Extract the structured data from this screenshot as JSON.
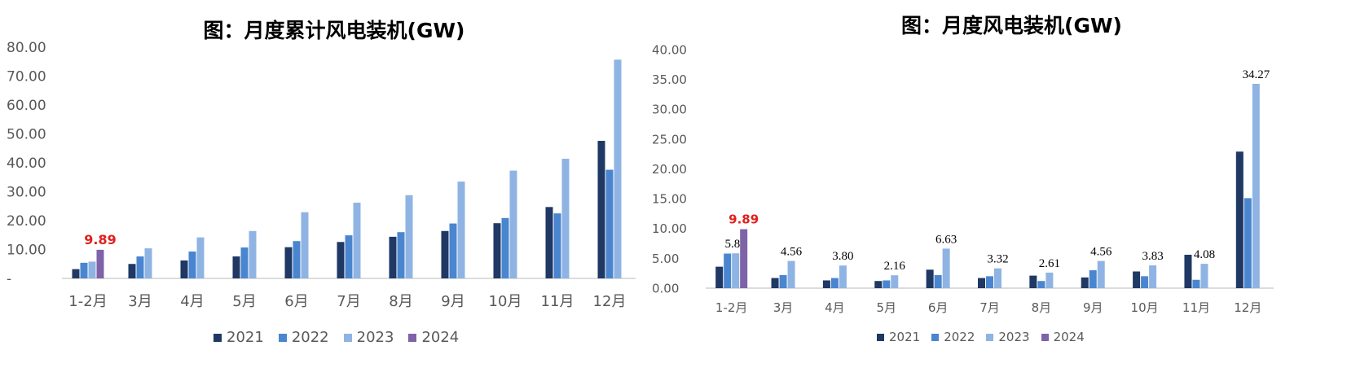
{
  "colors": {
    "2021": "#1f3864",
    "2022": "#4a86cf",
    "2023": "#8fb4e3",
    "2024": "#7f63a8",
    "highlight": "#e0201e",
    "axis": "#d0d0d0",
    "text": "#595959"
  },
  "chart_data": [
    {
      "type": "bar",
      "title": "图：月度累计风电装机(GW)",
      "xlabel": "",
      "ylabel": "",
      "ylim": [
        0,
        80
      ],
      "yticks": [
        "-",
        "10.00",
        "20.00",
        "30.00",
        "40.00",
        "50.00",
        "60.00",
        "70.00",
        "80.00"
      ],
      "grid": false,
      "legend_position": "bottom",
      "categories": [
        "1-2月",
        "3月",
        "4月",
        "5月",
        "6月",
        "7月",
        "8月",
        "9月",
        "10月",
        "11月",
        "12月"
      ],
      "series": [
        {
          "name": "2021",
          "values": [
            3.2,
            5.0,
            6.2,
            7.6,
            10.8,
            12.6,
            14.4,
            16.4,
            19.1,
            24.7,
            47.6
          ]
        },
        {
          "name": "2022",
          "values": [
            5.4,
            7.6,
            9.3,
            10.7,
            12.9,
            14.9,
            16.0,
            19.0,
            20.9,
            22.5,
            37.6
          ]
        },
        {
          "name": "2023",
          "values": [
            5.8,
            10.4,
            14.2,
            16.4,
            22.9,
            26.2,
            28.8,
            33.5,
            37.3,
            41.4,
            75.7
          ]
        },
        {
          "name": "2024",
          "values": [
            9.89,
            null,
            null,
            null,
            null,
            null,
            null,
            null,
            null,
            null,
            null
          ]
        }
      ],
      "data_labels": [
        {
          "series": "2024",
          "category": "1-2月",
          "text": "9.89"
        }
      ]
    },
    {
      "type": "bar",
      "title": "图：月度风电装机(GW)",
      "xlabel": "",
      "ylabel": "",
      "ylim": [
        0,
        40
      ],
      "yticks": [
        "0.00",
        "5.00",
        "10.00",
        "15.00",
        "20.00",
        "25.00",
        "30.00",
        "35.00",
        "40.00"
      ],
      "grid": false,
      "legend_position": "bottom",
      "categories": [
        "1-2月",
        "3月",
        "4月",
        "5月",
        "6月",
        "7月",
        "8月",
        "9月",
        "10月",
        "11月",
        "12月"
      ],
      "series": [
        {
          "name": "2021",
          "values": [
            3.6,
            1.7,
            1.3,
            1.2,
            3.1,
            1.7,
            2.1,
            1.8,
            2.8,
            5.6,
            22.9
          ]
        },
        {
          "name": "2022",
          "values": [
            5.8,
            2.2,
            1.7,
            1.3,
            2.2,
            2.0,
            1.2,
            3.0,
            2.0,
            1.4,
            15.1
          ]
        },
        {
          "name": "2023",
          "values": [
            5.84,
            4.56,
            3.8,
            2.16,
            6.63,
            3.32,
            2.61,
            4.56,
            3.83,
            4.08,
            34.27
          ]
        },
        {
          "name": "2024",
          "values": [
            9.89,
            null,
            null,
            null,
            null,
            null,
            null,
            null,
            null,
            null,
            null
          ]
        }
      ],
      "data_labels": [
        {
          "series": "2024",
          "category": "1-2月",
          "text": "9.89"
        },
        {
          "series": "2023",
          "category": "1-2月",
          "text": "5.84"
        },
        {
          "series": "2023",
          "category": "3月",
          "text": "4.56"
        },
        {
          "series": "2023",
          "category": "4月",
          "text": "3.80"
        },
        {
          "series": "2023",
          "category": "5月",
          "text": "2.16"
        },
        {
          "series": "2023",
          "category": "6月",
          "text": "6.63"
        },
        {
          "series": "2023",
          "category": "7月",
          "text": "3.32"
        },
        {
          "series": "2023",
          "category": "8月",
          "text": "2.61"
        },
        {
          "series": "2023",
          "category": "9月",
          "text": "4.56"
        },
        {
          "series": "2023",
          "category": "10月",
          "text": "3.83"
        },
        {
          "series": "2023",
          "category": "11月",
          "text": "4.08"
        },
        {
          "series": "2023",
          "category": "12月",
          "text": "34.27"
        }
      ]
    }
  ]
}
